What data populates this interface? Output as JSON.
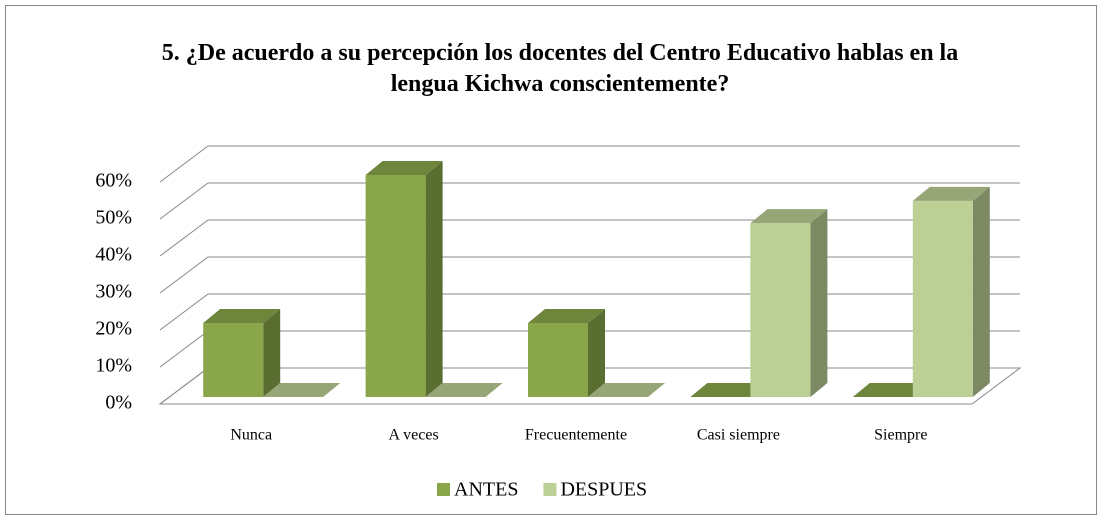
{
  "chart_data": {
    "type": "bar3d",
    "title": "5. ¿De acuerdo a su percepción los docentes del Centro Educativo hablas en la lengua Kichwa conscientemente?",
    "categories": [
      "Nunca",
      "A veces",
      "Frecuentemente",
      "Casi siempre",
      "Siempre"
    ],
    "series": [
      {
        "name": "ANTES",
        "color": "#8aa64b",
        "values": [
          20,
          60,
          20,
          0,
          0
        ]
      },
      {
        "name": "DESPUES",
        "color": "#bccf94",
        "values": [
          0,
          0,
          0,
          47,
          53
        ]
      }
    ],
    "ylim": [
      0,
      60
    ],
    "yticks": [
      {
        "value": 0,
        "label": "0%"
      },
      {
        "value": 10,
        "label": "10%"
      },
      {
        "value": 20,
        "label": "20%"
      },
      {
        "value": 30,
        "label": "30%"
      },
      {
        "value": 40,
        "label": "40%"
      },
      {
        "value": 50,
        "label": "50%"
      },
      {
        "value": 60,
        "label": "60%"
      }
    ],
    "grid": true,
    "legend": "bottom"
  }
}
